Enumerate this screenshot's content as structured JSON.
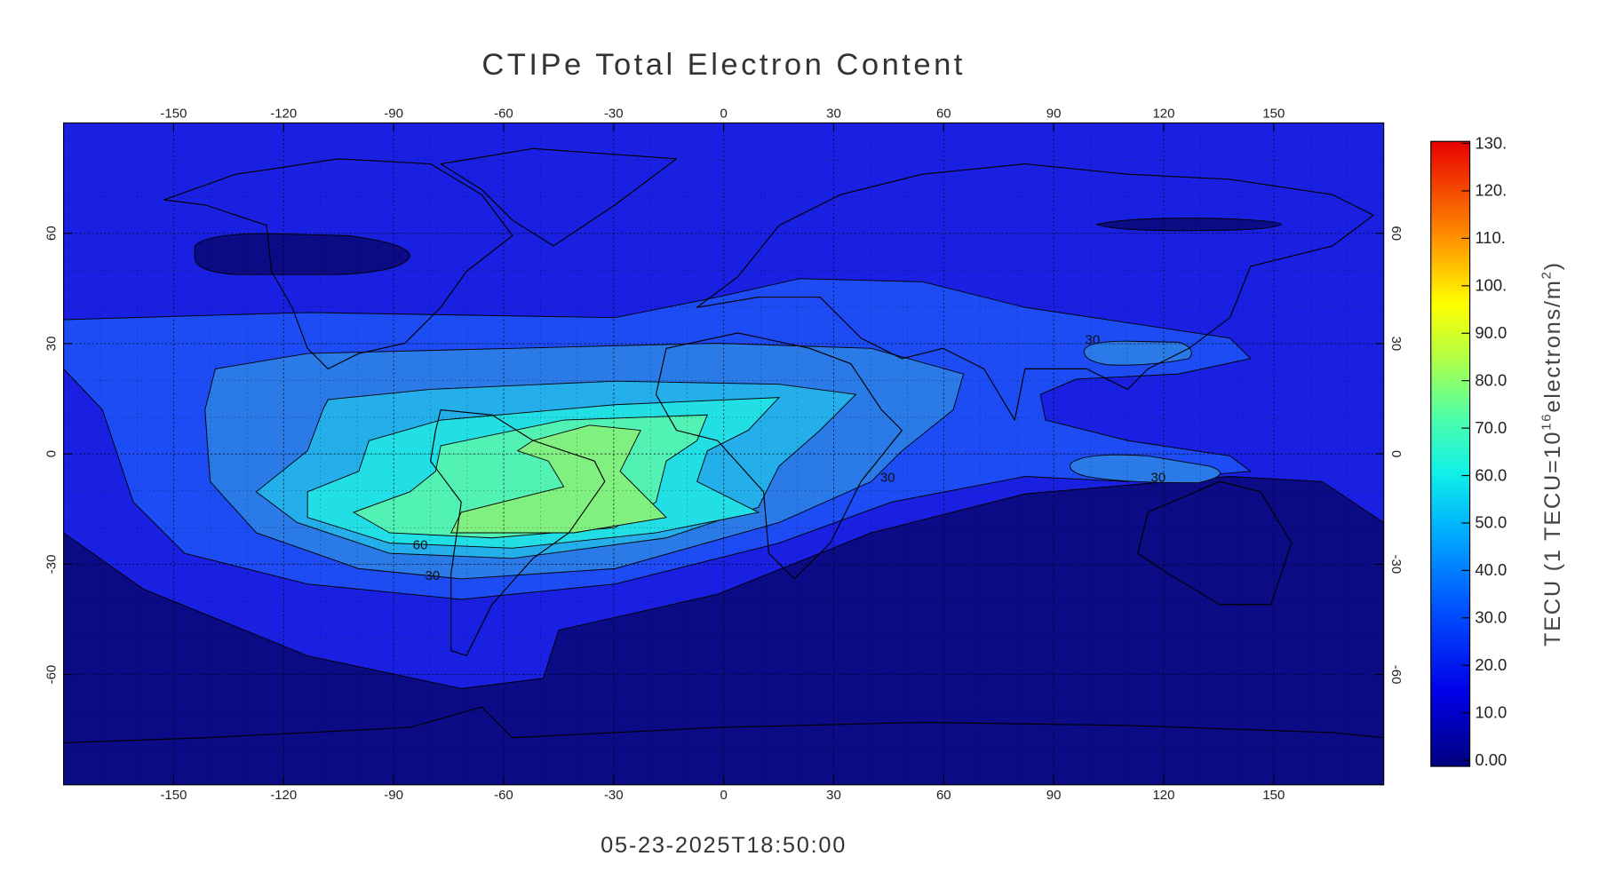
{
  "chart_data": {
    "type": "contour-map",
    "title": "CTIPe Total Electron Content",
    "subtitle": "05-23-2025T18:50:00",
    "xlim": [
      -180,
      180
    ],
    "ylim": [
      -90,
      90
    ],
    "xticks": [
      -150,
      -120,
      -90,
      -60,
      -30,
      0,
      30,
      60,
      90,
      120,
      150
    ],
    "yticks": [
      -60,
      -30,
      0,
      30,
      60
    ],
    "grid": true,
    "colorbar": {
      "label_parts": [
        "TECU (1 TECU=10",
        "16",
        "electrons/m",
        "2",
        ")"
      ],
      "lim": [
        0,
        130
      ],
      "ticks": [
        {
          "value": 0,
          "label": "0.00"
        },
        {
          "value": 10,
          "label": "10.0"
        },
        {
          "value": 20,
          "label": "20.0"
        },
        {
          "value": 30,
          "label": "30.0"
        },
        {
          "value": 40,
          "label": "40.0"
        },
        {
          "value": 50,
          "label": "50.0"
        },
        {
          "value": 60,
          "label": "60.0"
        },
        {
          "value": 70,
          "label": "70.0"
        },
        {
          "value": 80,
          "label": "80.0"
        },
        {
          "value": 90,
          "label": "90.0"
        },
        {
          "value": 100,
          "label": "100."
        },
        {
          "value": 110,
          "label": "110."
        },
        {
          "value": 120,
          "label": "120."
        },
        {
          "value": 130,
          "label": "130."
        }
      ]
    },
    "contour_labels": [
      "30",
      "30",
      "30",
      "60",
      "30"
    ]
  }
}
